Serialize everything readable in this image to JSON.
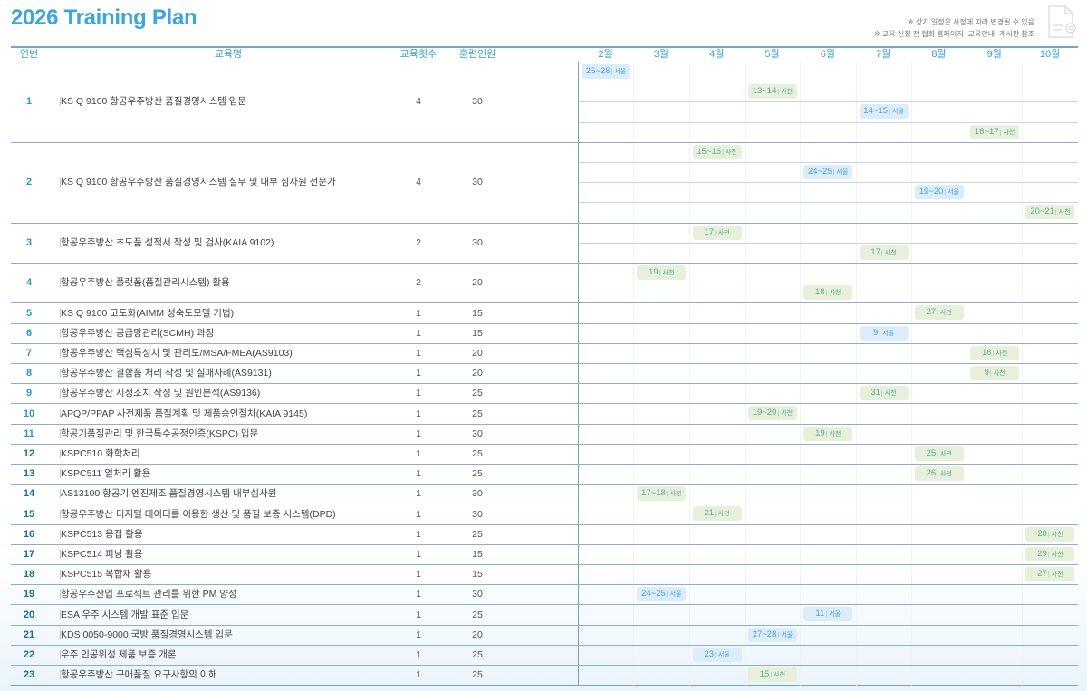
{
  "title": "2026 Training Plan",
  "notes": [
    "※ 상기 일정은 사정에 따라 변경될 수 있음",
    "※ 교육 신청 전 협회 홈페이지 -교육안내- 게시판 참조"
  ],
  "colors": {
    "accent": "#3ea6d8",
    "seoul_badge_bg": "#dcedf9",
    "seoul_badge_text": "#45a3d6",
    "sacheon_badge_bg": "#e8f0dc",
    "sacheon_badge_text": "#4fae93"
  },
  "headers": {
    "no": "연번",
    "name": "교육명",
    "count": "교육횟수",
    "trainees": "훈련인원"
  },
  "months": [
    "2월",
    "3월",
    "4월",
    "5월",
    "6월",
    "7월",
    "8월",
    "9월",
    "10월"
  ],
  "courses": [
    {
      "no": "1",
      "name": "KS Q 9100 항공우주방산 품질경영시스템 입문",
      "count": "4",
      "trainees": "30",
      "sessions": [
        {
          "month": "2월",
          "dates": "25~26",
          "loc": "서울"
        },
        {
          "month": "5월",
          "dates": "13~14",
          "loc": "사천"
        },
        {
          "month": "7월",
          "dates": "14~15",
          "loc": "서울"
        },
        {
          "month": "9월",
          "dates": "16~17",
          "loc": "사천"
        }
      ]
    },
    {
      "no": "2",
      "name": "KS Q 9100 항공우주방산 품질경영시스템 실무 및 내부 심사원 전문가",
      "count": "4",
      "trainees": "30",
      "sessions": [
        {
          "month": "4월",
          "dates": "15~16",
          "loc": "사천"
        },
        {
          "month": "6월",
          "dates": "24~25",
          "loc": "서울"
        },
        {
          "month": "8월",
          "dates": "19~20",
          "loc": "서울"
        },
        {
          "month": "10월",
          "dates": "20~21",
          "loc": "사천"
        }
      ]
    },
    {
      "no": "3",
      "name": "항공우주방산 초도품 성적서 작성 및 검사(KAIA 9102)",
      "count": "2",
      "trainees": "30",
      "sessions": [
        {
          "month": "4월",
          "dates": "17",
          "loc": "사천"
        },
        {
          "month": "7월",
          "dates": "17",
          "loc": "사천"
        }
      ]
    },
    {
      "no": "4",
      "name": "항공우주방산 플랫폼(품질관리시스템) 활용",
      "count": "2",
      "trainees": "20",
      "sessions": [
        {
          "month": "3월",
          "dates": "19",
          "loc": "사천"
        },
        {
          "month": "6월",
          "dates": "18",
          "loc": "사천"
        }
      ]
    },
    {
      "no": "5",
      "name": "KS Q 9100 고도화(AIMM 성숙도모델 기법)",
      "count": "1",
      "trainees": "15",
      "sessions": [
        {
          "month": "8월",
          "dates": "27",
          "loc": "사천"
        }
      ]
    },
    {
      "no": "6",
      "name": "항공우주방산 공급망관리(SCMH) 과정",
      "count": "1",
      "trainees": "15",
      "sessions": [
        {
          "month": "7월",
          "dates": "9",
          "loc": "서울"
        }
      ]
    },
    {
      "no": "7",
      "name": "항공우주방산 핵심특성치 및 관리도/MSA/FMEA(AS9103)",
      "count": "1",
      "trainees": "20",
      "sessions": [
        {
          "month": "9월",
          "dates": "18",
          "loc": "사천"
        }
      ]
    },
    {
      "no": "8",
      "name": "항공우주방산 결함품 처리 작성 및 실패사례(AS9131)",
      "count": "1",
      "trainees": "20",
      "sessions": [
        {
          "month": "9월",
          "dates": "9",
          "loc": "사천"
        }
      ]
    },
    {
      "no": "9",
      "name": "항공우주방산 시정조치 작성 및 원인분석(AS9136)",
      "count": "1",
      "trainees": "25",
      "sessions": [
        {
          "month": "7월",
          "dates": "31",
          "loc": "사천"
        }
      ]
    },
    {
      "no": "10",
      "name": "APQP/PPAP 사전제품 품질계획 및 제품승인절차(KAIA 9145)",
      "count": "1",
      "trainees": "25",
      "sessions": [
        {
          "month": "5월",
          "dates": "19~20",
          "loc": "사천"
        }
      ]
    },
    {
      "no": "11",
      "name": "항공기품질관리 및 한국특수공정인증(KSPC) 입문",
      "count": "1",
      "trainees": "30",
      "sessions": [
        {
          "month": "6월",
          "dates": "19",
          "loc": "사천"
        }
      ]
    },
    {
      "no": "12",
      "name": "KSPC510 화학처리",
      "count": "1",
      "trainees": "25",
      "sessions": [
        {
          "month": "8월",
          "dates": "25",
          "loc": "사천"
        }
      ]
    },
    {
      "no": "13",
      "name": "KSPC511 열처리 활용",
      "count": "1",
      "trainees": "25",
      "sessions": [
        {
          "month": "8월",
          "dates": "26",
          "loc": "사천"
        }
      ]
    },
    {
      "no": "14",
      "name": "AS13100 항공기 엔진제조 품질경영시스템 내부심사원",
      "count": "1",
      "trainees": "30",
      "sessions": [
        {
          "month": "3월",
          "dates": "17~18",
          "loc": "사천"
        }
      ]
    },
    {
      "no": "15",
      "name": "항공우주방산 디지털 데이터를 이용한 생산 및 품질 보증 시스템(DPD)",
      "count": "1",
      "trainees": "30",
      "sessions": [
        {
          "month": "4월",
          "dates": "21",
          "loc": "사천"
        }
      ]
    },
    {
      "no": "16",
      "name": "KSPC513 용접 활용",
      "count": "1",
      "trainees": "25",
      "sessions": [
        {
          "month": "10월",
          "dates": "28",
          "loc": "사천"
        }
      ]
    },
    {
      "no": "17",
      "name": "KSPC514 피닝 활용",
      "count": "1",
      "trainees": "15",
      "sessions": [
        {
          "month": "10월",
          "dates": "29",
          "loc": "사천"
        }
      ]
    },
    {
      "no": "18",
      "name": "KSPC515 복합재 활용",
      "count": "1",
      "trainees": "15",
      "sessions": [
        {
          "month": "10월",
          "dates": "27",
          "loc": "사천"
        }
      ]
    },
    {
      "no": "19",
      "name": "항공우주산업 프로젝트 관리를 위한 PM 양성",
      "count": "1",
      "trainees": "30",
      "sessions": [
        {
          "month": "3월",
          "dates": "24~25",
          "loc": "서울"
        }
      ]
    },
    {
      "no": "20",
      "name": "ESA 우주 시스템 개발 표준 입문",
      "count": "1",
      "trainees": "25",
      "sessions": [
        {
          "month": "6월",
          "dates": "11",
          "loc": "서울"
        }
      ]
    },
    {
      "no": "21",
      "name": "KDS 0050-9000 국방 품질경영시스템 입문",
      "count": "1",
      "trainees": "20",
      "sessions": [
        {
          "month": "5월",
          "dates": "27~28",
          "loc": "서울"
        }
      ]
    },
    {
      "no": "22",
      "name": "우주 인공위성 제품 보증 개론",
      "count": "1",
      "trainees": "25",
      "sessions": [
        {
          "month": "4월",
          "dates": "23",
          "loc": "서울"
        }
      ]
    },
    {
      "no": "23",
      "name": "항공우주방산 구매품질 요구사항의 이해",
      "count": "1",
      "trainees": "25",
      "sessions": [
        {
          "month": "5월",
          "dates": "15",
          "loc": "사천"
        }
      ]
    }
  ]
}
